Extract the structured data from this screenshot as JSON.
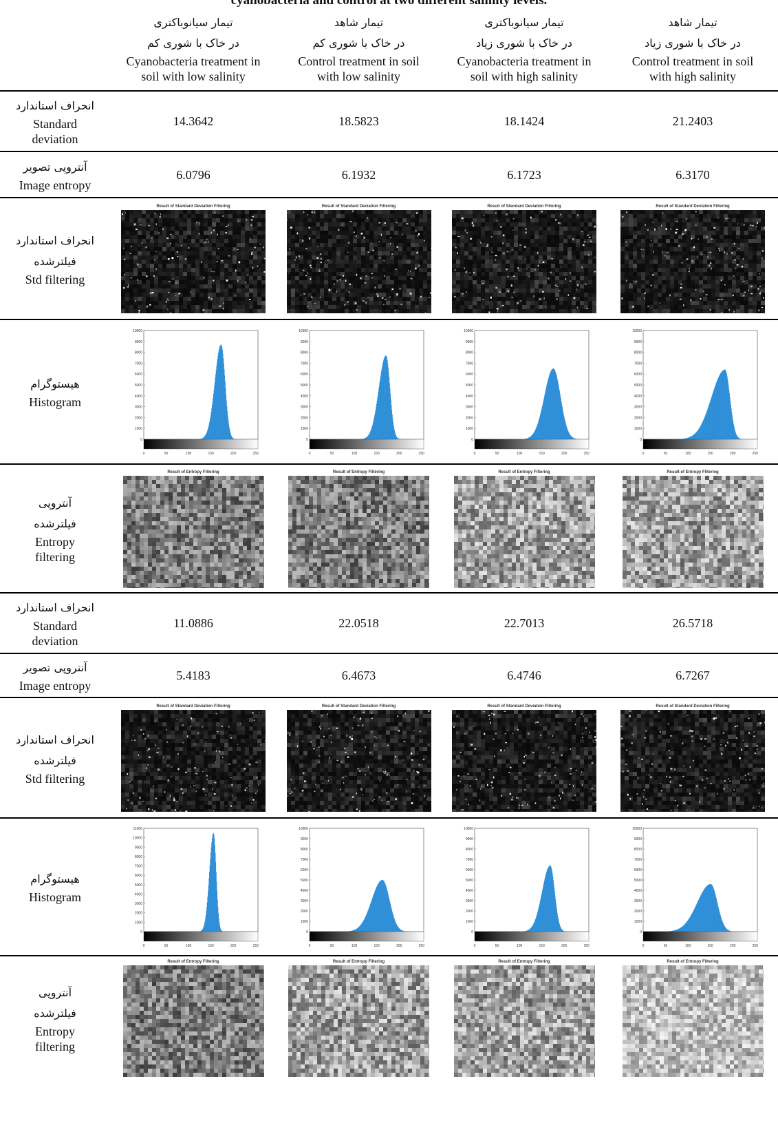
{
  "caption": "cyanobacteria and control at two different salinity levels.",
  "columns": [
    {
      "fa1": "تیمار سیانوباکتری",
      "fa2": "در خاک با شوری کم",
      "en1": "Cyanobacteria treatment in",
      "en2": "soil with low salinity"
    },
    {
      "fa1": "تیمار شاهد",
      "fa2": "در خاک با شوری کم",
      "en1": "Control treatment in soil",
      "en2": "with low salinity"
    },
    {
      "fa1": "تیمار سیانوباکتری",
      "fa2": "در خاک با شوری زیاد",
      "en1": "Cyanobacteria treatment in",
      "en2": "soil with high salinity"
    },
    {
      "fa1": "تیمار شاهد",
      "fa2": "در خاک با شوری زیاد",
      "en1": "Control treatment in soil",
      "en2": "with high salinity"
    }
  ],
  "labels": {
    "std_fa": "انحراف استاندارد",
    "std_en1": "Standard",
    "std_en2": "deviation",
    "ent_fa": "آنتروپی تصویر",
    "ent_en": "Image entropy",
    "stdf_fa1": "انحراف استاندارد",
    "stdf_fa2": "فیلترشده",
    "stdf_en": "Std filtering",
    "hist_fa": "هیستوگرام",
    "hist_en": "Histogram",
    "entf_fa1": "آنتروپی",
    "entf_fa2": "فیلترشده",
    "entf_en1": "Entropy",
    "entf_en2": "filtering"
  },
  "panel_titles": {
    "std": "Result of Standard Deviation Filtering",
    "entropy": "Result of Entropy Filtering"
  },
  "section1": {
    "std_values": [
      "14.3642",
      "18.5823",
      "18.1424",
      "21.2403"
    ],
    "entropy_values": [
      "6.0796",
      "6.1932",
      "6.1723",
      "6.3170"
    ],
    "histograms": [
      {
        "ymax": 10000,
        "yticks": [
          "10000",
          "9000",
          "8000",
          "7000",
          "6000",
          "5000",
          "4000",
          "3000",
          "2000",
          "1000",
          "0"
        ],
        "peak": 8700,
        "mean": 172,
        "sl": 14,
        "sr": 9
      },
      {
        "ymax": 10000,
        "yticks": [
          "10000",
          "9000",
          "8000",
          "7000",
          "6000",
          "5000",
          "4000",
          "3000",
          "2000",
          "1000",
          "0"
        ],
        "peak": 7700,
        "mean": 170,
        "sl": 16,
        "sr": 9
      },
      {
        "ymax": 10000,
        "yticks": [
          "10000",
          "9000",
          "8000",
          "7000",
          "6000",
          "5000",
          "4000",
          "3000",
          "2000",
          "1000",
          "0"
        ],
        "peak": 6500,
        "mean": 175,
        "sl": 20,
        "sr": 16
      },
      {
        "ymax": 10000,
        "yticks": [
          "10000",
          "9000",
          "8000",
          "7000",
          "6000",
          "5000",
          "4000",
          "3000",
          "2000",
          "1000",
          "0"
        ],
        "peak": 6400,
        "mean": 182,
        "sl": 30,
        "sr": 11
      }
    ]
  },
  "section2": {
    "std_values": [
      "11.0886",
      "22.0518",
      "22.7013",
      "26.5718"
    ],
    "entropy_values": [
      "5.4183",
      "6.4673",
      "6.4746",
      "6.7267"
    ],
    "histograms": [
      {
        "ymax": 11000,
        "yticks": [
          "11000",
          "10000",
          "9000",
          "8000",
          "7000",
          "6000",
          "5000",
          "4000",
          "3000",
          "2000",
          "1000",
          "0"
        ],
        "peak": 10500,
        "mean": 155,
        "sl": 9,
        "sr": 6
      },
      {
        "ymax": 10000,
        "yticks": [
          "10000",
          "9000",
          "8000",
          "7000",
          "6000",
          "5000",
          "4000",
          "3000",
          "2000",
          "1000",
          "0"
        ],
        "peak": 5000,
        "mean": 162,
        "sl": 24,
        "sr": 16
      },
      {
        "ymax": 10000,
        "yticks": [
          "10000",
          "9000",
          "8000",
          "7000",
          "6000",
          "5000",
          "4000",
          "3000",
          "2000",
          "1000",
          "0"
        ],
        "peak": 6400,
        "mean": 168,
        "sl": 18,
        "sr": 10
      },
      {
        "ymax": 10000,
        "yticks": [
          "10000",
          "9000",
          "8000",
          "7000",
          "6000",
          "5000",
          "4000",
          "3000",
          "2000",
          "1000",
          "0"
        ],
        "peak": 4600,
        "mean": 150,
        "sl": 30,
        "sr": 15
      }
    ]
  },
  "hist_xticks": [
    "0",
    "50",
    "100",
    "150",
    "200",
    "250"
  ],
  "colors": {
    "bar": "#2e8fd8",
    "bar_edge": "#1f6fb0"
  }
}
